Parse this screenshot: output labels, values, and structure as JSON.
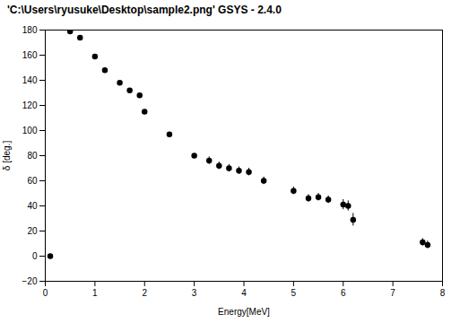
{
  "chart_data": {
    "type": "scatter",
    "title": "'C:\\Users\\ryusuke\\Desktop\\sample2.png' GSYS - 2.4.0",
    "xlabel": "Energy[MeV]",
    "ylabel": "δ [deg.]",
    "x": [
      0.1,
      0.5,
      0.7,
      1.0,
      1.2,
      1.5,
      1.7,
      1.9,
      2.0,
      2.5,
      3.0,
      3.3,
      3.5,
      3.7,
      3.9,
      4.1,
      4.4,
      5.0,
      5.3,
      5.5,
      5.7,
      6.0,
      6.1,
      6.2,
      7.6,
      7.7
    ],
    "values": [
      0,
      179,
      174,
      159,
      148,
      138,
      132,
      128,
      115,
      97,
      80,
      76,
      72,
      70,
      68,
      67,
      60,
      52,
      46,
      47,
      45,
      41,
      40,
      29,
      11,
      9
    ],
    "yerr": [
      0,
      0,
      0,
      0,
      0,
      0,
      0,
      0,
      0,
      0,
      0,
      3,
      3,
      3,
      3,
      3,
      3,
      3,
      3,
      3,
      3,
      4,
      4,
      5,
      3,
      3
    ],
    "color": "black",
    "marker": "o",
    "xlim": [
      0,
      8
    ],
    "ylim": [
      -20,
      180
    ],
    "xticks": [
      0,
      1,
      2,
      3,
      4,
      5,
      6,
      7,
      8
    ],
    "yticks": [
      -20,
      0,
      20,
      40,
      60,
      80,
      100,
      120,
      140,
      160,
      180
    ],
    "grid": false
  }
}
